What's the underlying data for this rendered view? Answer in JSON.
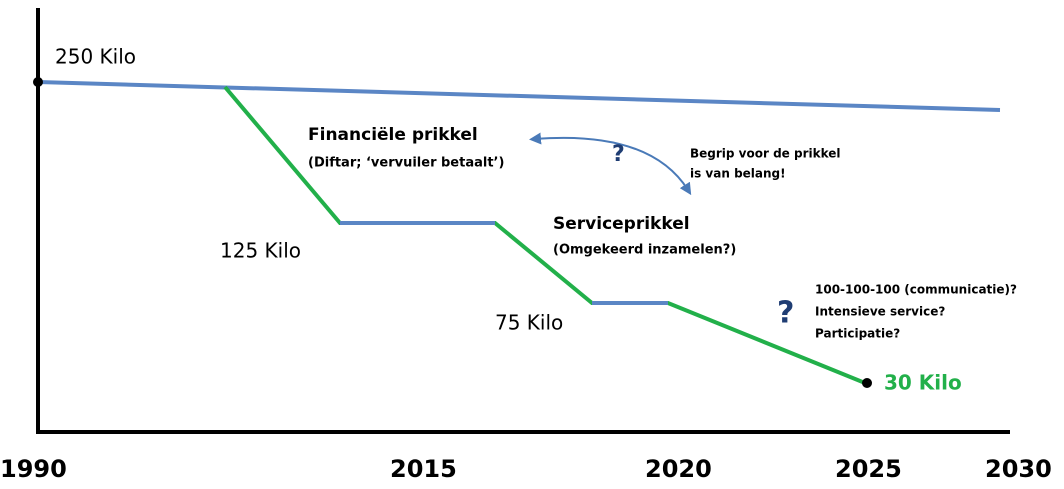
{
  "axis_labels": [
    "1990",
    "2015",
    "2020",
    "2025",
    "2030"
  ],
  "levels": {
    "start": "250 Kilo",
    "mid": "125 Kilo",
    "low": "75 Kilo",
    "target": "30 Kilo"
  },
  "financial": {
    "title": "Financiële prikkel",
    "subtitle": "(Diftar; ‘vervuiler betaalt’)"
  },
  "service": {
    "title": "Serviceprikkel",
    "subtitle": "(Omgekeerd inzamelen?)"
  },
  "question_marks": [
    "?",
    "?"
  ],
  "note": [
    "Begrip voor de prikkel",
    "is van belang!"
  ],
  "options": [
    "100-100-100 (communicatie)?",
    "Intensieve service?",
    "Participatie?"
  ]
}
